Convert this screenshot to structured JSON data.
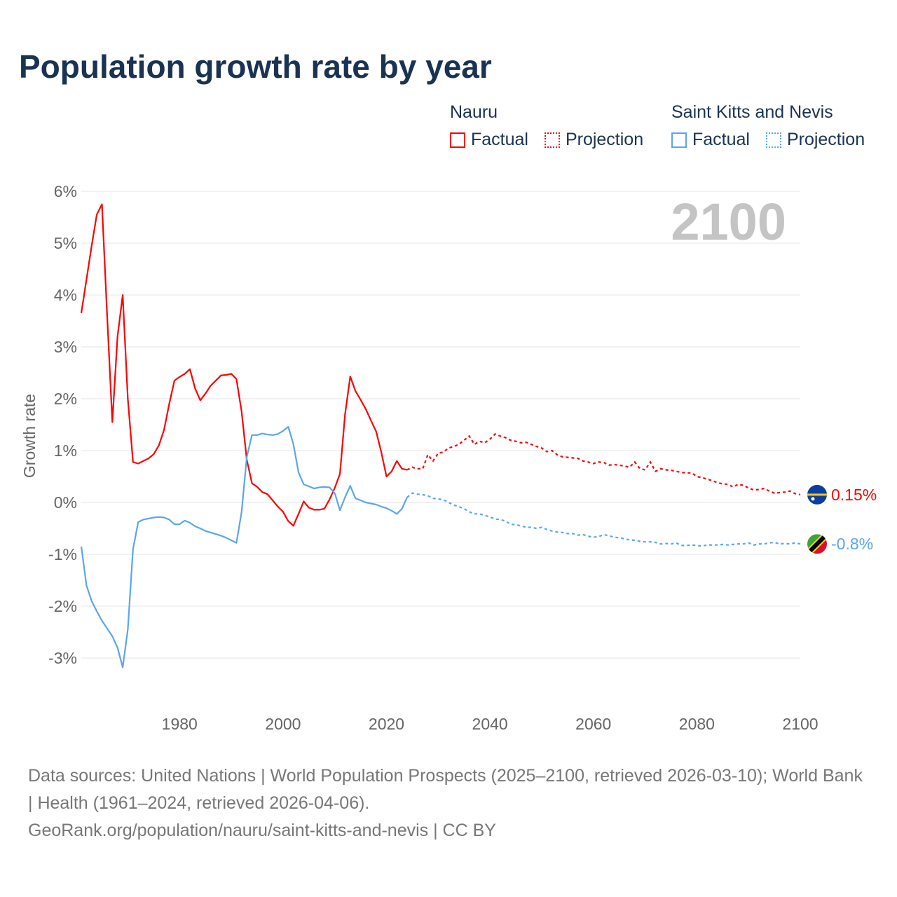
{
  "title": "Population growth rate by year",
  "legend": {
    "groups": [
      {
        "country": "Nauru",
        "color": "#ff0000",
        "factual_label": "Factual",
        "projection_label": "Projection"
      },
      {
        "country": "Saint Kitts and Nevis",
        "color": "#5aa6ee",
        "factual_label": "Factual",
        "projection_label": "Projection"
      }
    ]
  },
  "year_watermark": "2100",
  "footer": {
    "sources": "Data sources: United Nations | World Population Prospects (2025–2100, retrieved 2026-03-10); World Bank | Health (1961–2024, retrieved 2026-04-06).",
    "link": "GeoRank.org/population/nauru/saint-kitts-and-nevis | CC BY"
  },
  "chart_data": {
    "type": "line",
    "title": "Population growth rate by year",
    "xlabel": "",
    "ylabel": "Growth rate",
    "xlim": [
      1961,
      2100
    ],
    "ylim": [
      -3.6,
      6
    ],
    "xticks": [
      1980,
      2000,
      2020,
      2040,
      2060,
      2080,
      2100
    ],
    "yticks": [
      -3,
      -2,
      -1,
      0,
      1,
      2,
      3,
      4,
      5,
      6
    ],
    "ytick_labels": [
      "-3%",
      "-2%",
      "-1%",
      "0%",
      "1%",
      "2%",
      "3%",
      "4%",
      "5%",
      "6%"
    ],
    "grid": true,
    "series": [
      {
        "name": "Nauru",
        "color": "#ff0000",
        "end_label": "0.15%",
        "factual_start": 1961,
        "factual": [
          3.65,
          4.3,
          4.95,
          5.55,
          5.75,
          3.6,
          1.55,
          3.2,
          4.0,
          2.0,
          0.78,
          0.75,
          0.8,
          0.85,
          0.93,
          1.1,
          1.4,
          1.9,
          2.35,
          2.42,
          2.48,
          2.57,
          2.2,
          1.97,
          2.1,
          2.25,
          2.35,
          2.45,
          2.46,
          2.48,
          2.38,
          1.75,
          0.82,
          0.37,
          0.3,
          0.2,
          0.16,
          0.04,
          -0.08,
          -0.18,
          -0.36,
          -0.45,
          -0.22,
          0.02,
          -0.1,
          -0.14,
          -0.14,
          -0.12,
          0.06,
          0.28,
          0.55,
          1.7,
          2.43,
          2.15,
          1.98,
          1.8,
          1.58,
          1.37,
          0.97,
          0.5,
          0.6,
          0.8,
          0.65,
          0.63
        ],
        "projection_start": 2024,
        "projection": [
          0.63,
          0.68,
          0.65,
          0.65,
          0.92,
          0.8,
          0.95,
          0.97,
          1.05,
          1.08,
          1.12,
          1.2,
          1.28,
          1.12,
          1.18,
          1.15,
          1.22,
          1.32,
          1.28,
          1.25,
          1.2,
          1.18,
          1.15,
          1.16,
          1.12,
          1.08,
          1.05,
          0.98,
          1.0,
          0.92,
          0.88,
          0.87,
          0.86,
          0.85,
          0.8,
          0.78,
          0.75,
          0.78,
          0.77,
          0.72,
          0.73,
          0.72,
          0.7,
          0.68,
          0.78,
          0.65,
          0.63,
          0.78,
          0.6,
          0.65,
          0.63,
          0.62,
          0.6,
          0.58,
          0.57,
          0.57,
          0.5,
          0.48,
          0.45,
          0.42,
          0.38,
          0.36,
          0.35,
          0.3,
          0.35,
          0.33,
          0.28,
          0.24,
          0.25,
          0.27,
          0.22,
          0.18,
          0.19,
          0.2,
          0.22,
          0.17,
          0.15
        ]
      },
      {
        "name": "Saint Kitts and Nevis",
        "color": "#5aa6ee",
        "end_label": "-0.8%",
        "factual_start": 1961,
        "factual": [
          -0.85,
          -1.6,
          -1.9,
          -2.1,
          -2.28,
          -2.43,
          -2.58,
          -2.8,
          -3.18,
          -2.45,
          -0.9,
          -0.38,
          -0.33,
          -0.31,
          -0.29,
          -0.28,
          -0.29,
          -0.33,
          -0.42,
          -0.42,
          -0.35,
          -0.39,
          -0.46,
          -0.5,
          -0.55,
          -0.58,
          -0.61,
          -0.64,
          -0.68,
          -0.73,
          -0.78,
          -0.18,
          0.88,
          1.3,
          1.3,
          1.33,
          1.31,
          1.3,
          1.32,
          1.38,
          1.46,
          1.13,
          0.58,
          0.35,
          0.31,
          0.27,
          0.29,
          0.3,
          0.29,
          0.18,
          -0.15,
          0.1,
          0.32,
          0.08,
          0.04,
          0.0,
          -0.02,
          -0.04,
          -0.08,
          -0.11,
          -0.16,
          -0.22,
          -0.12,
          0.1
        ],
        "projection_start": 2024,
        "projection": [
          0.1,
          0.18,
          0.16,
          0.15,
          0.13,
          0.08,
          0.07,
          0.05,
          0.0,
          -0.05,
          -0.08,
          -0.12,
          -0.18,
          -0.22,
          -0.22,
          -0.25,
          -0.28,
          -0.32,
          -0.33,
          -0.36,
          -0.42,
          -0.43,
          -0.45,
          -0.48,
          -0.48,
          -0.5,
          -0.48,
          -0.52,
          -0.55,
          -0.57,
          -0.58,
          -0.6,
          -0.6,
          -0.63,
          -0.62,
          -0.65,
          -0.67,
          -0.66,
          -0.62,
          -0.64,
          -0.67,
          -0.68,
          -0.7,
          -0.72,
          -0.73,
          -0.75,
          -0.76,
          -0.76,
          -0.77,
          -0.8,
          -0.79,
          -0.8,
          -0.78,
          -0.83,
          -0.83,
          -0.82,
          -0.83,
          -0.84,
          -0.82,
          -0.82,
          -0.82,
          -0.81,
          -0.82,
          -0.81,
          -0.8,
          -0.8,
          -0.78,
          -0.82,
          -0.8,
          -0.8,
          -0.78,
          -0.77,
          -0.8,
          -0.79,
          -0.8,
          -0.78,
          -0.8
        ]
      }
    ]
  }
}
